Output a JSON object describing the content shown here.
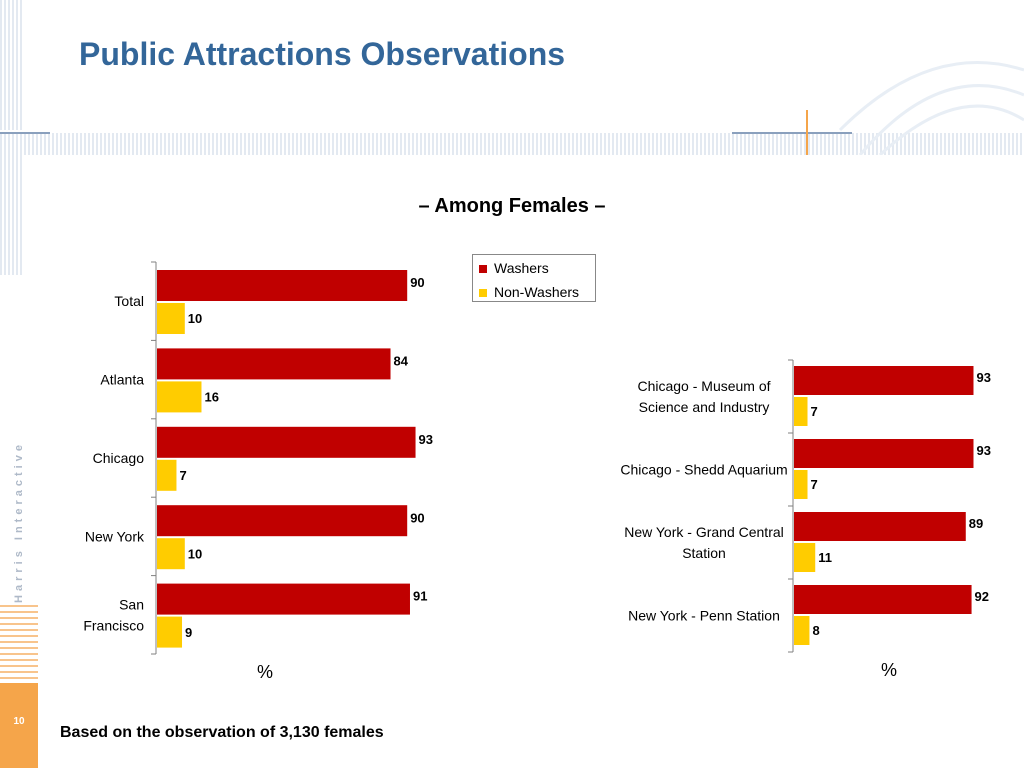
{
  "slide": {
    "title": "Public Attractions Observations",
    "subtitle": "– Among Females –",
    "footnote": "Based on the observation of 3,130 females",
    "page_number": "10",
    "brand": "Harris Interactive"
  },
  "colors": {
    "washers": "#c00000",
    "non_washers": "#ffcc00",
    "title": "#336699",
    "accent_orange": "#f5a54a"
  },
  "chart_data": [
    {
      "type": "bar",
      "orientation": "horizontal",
      "categories": [
        "Total",
        "Atlanta",
        "Chicago",
        "New York",
        "San Francisco"
      ],
      "series": [
        {
          "name": "Washers",
          "values": [
            90,
            84,
            93,
            90,
            91
          ]
        },
        {
          "name": "Non-Washers",
          "values": [
            10,
            16,
            7,
            10,
            9
          ]
        }
      ],
      "xlabel": "%",
      "xlim": [
        0,
        100
      ],
      "legend": "top-right",
      "grid": false
    },
    {
      "type": "bar",
      "orientation": "horizontal",
      "categories": [
        "Chicago - Museum of Science and Industry",
        "Chicago - Shedd Aquarium",
        "New York - Grand Central Station",
        "New York - Penn Station"
      ],
      "series": [
        {
          "name": "Washers",
          "values": [
            93,
            93,
            89,
            92
          ]
        },
        {
          "name": "Non-Washers",
          "values": [
            7,
            7,
            11,
            8
          ]
        }
      ],
      "xlabel": "%",
      "xlim": [
        0,
        100
      ],
      "grid": false
    }
  ]
}
